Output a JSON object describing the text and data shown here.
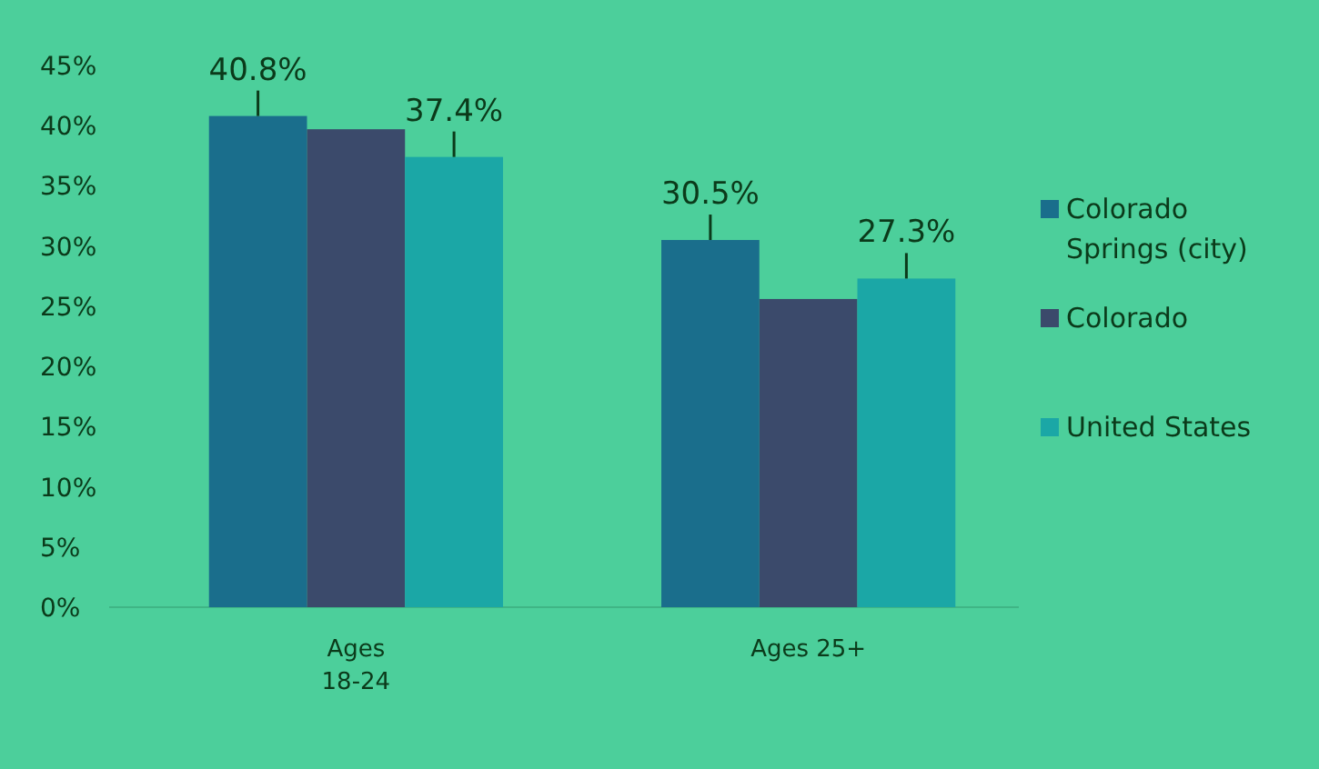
{
  "chart_data": {
    "type": "bar",
    "categories": [
      "Ages 18-24",
      "Ages 25+"
    ],
    "series": [
      {
        "name": "Colorado Springs (city)",
        "color": "#1a6e8c",
        "values": [
          40.8,
          30.5
        ],
        "value_labels": [
          "40.8%",
          "30.5%"
        ]
      },
      {
        "name": "Colorado",
        "color": "#3b4a6b",
        "values": [
          39.7,
          25.6
        ],
        "value_labels": [
          null,
          null
        ]
      },
      {
        "name": "United States",
        "color": "#1ba7a6",
        "values": [
          37.4,
          27.3
        ],
        "value_labels": [
          "37.4%",
          "27.3%"
        ]
      }
    ],
    "ylim": [
      0,
      45
    ],
    "yticks": [
      {
        "value": 0,
        "label": "0%"
      },
      {
        "value": 5,
        "label": "5%"
      },
      {
        "value": 10,
        "label": "10%"
      },
      {
        "value": 15,
        "label": "15%"
      },
      {
        "value": 20,
        "label": "20%"
      },
      {
        "value": 25,
        "label": "25%"
      },
      {
        "value": 30,
        "label": "30%"
      },
      {
        "value": 35,
        "label": "35%"
      },
      {
        "value": 40,
        "label": "40%"
      },
      {
        "value": 45,
        "label": "45%"
      }
    ],
    "legend": "right"
  }
}
